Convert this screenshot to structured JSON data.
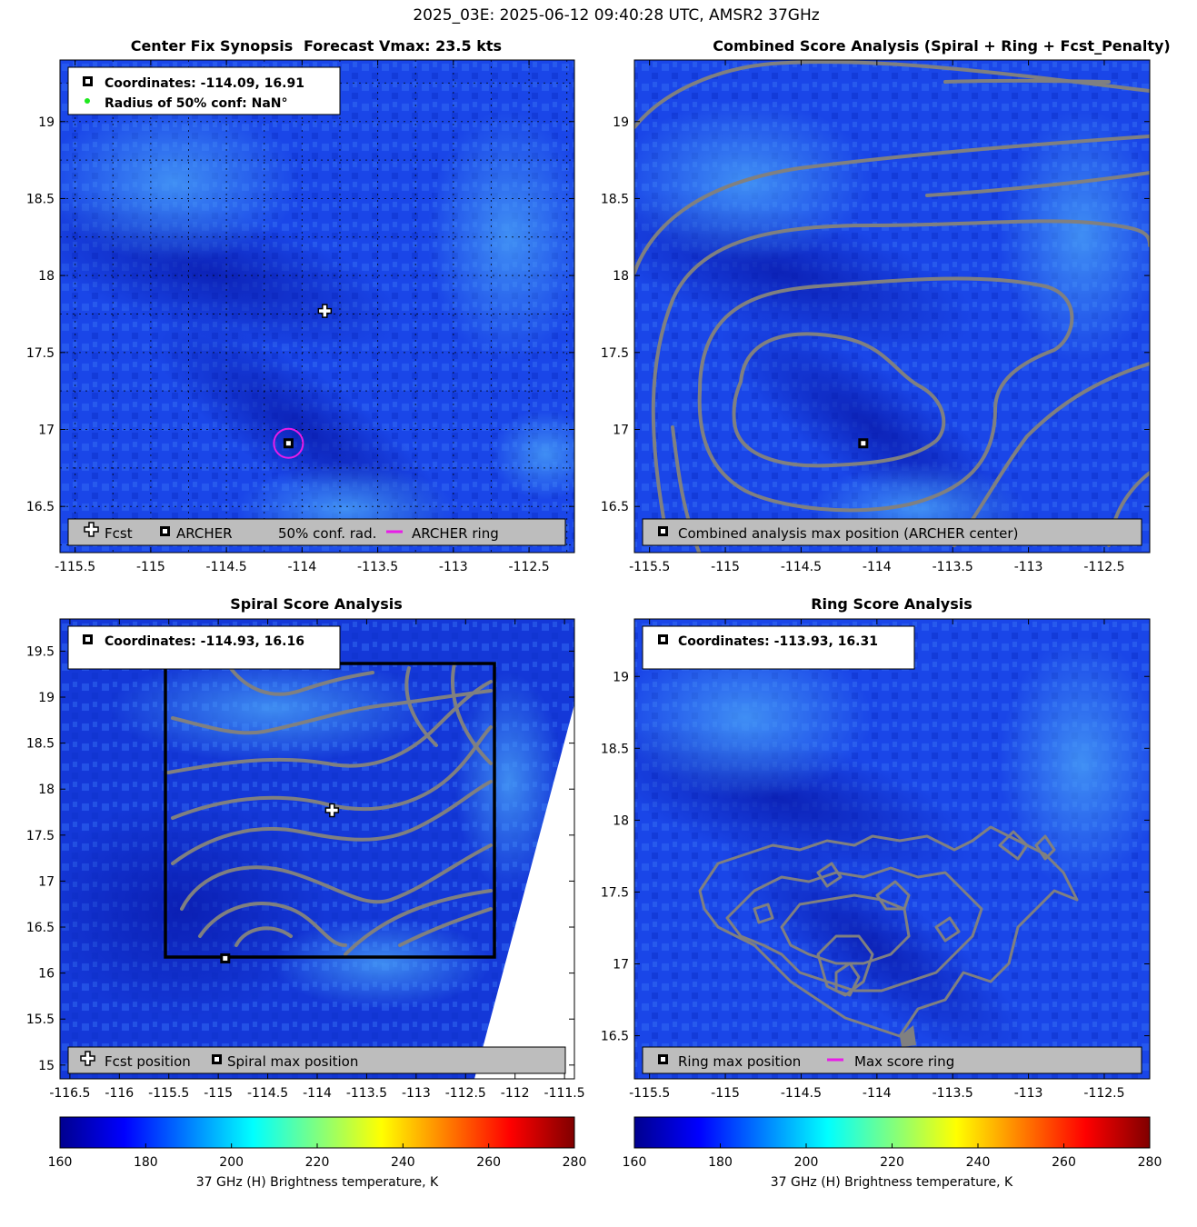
{
  "suptitle": "2025_03E: 2025-06-12 09:40:28 UTC, AMSR2 37GHz",
  "colors": {
    "plot_bg": "#1a46e8",
    "contour": "#808080",
    "ring": "#e81ce8",
    "conf": "#1ee81e",
    "legend_bar": "#bdbdbd"
  },
  "icons": {
    "fcst": "white-plus-icon",
    "archer": "black-square-marker-icon",
    "conf": "green-dot-icon",
    "ring": "magenta-line-icon"
  },
  "chart_data": [
    {
      "type": "heatmap",
      "panel": "center-fix",
      "title": "Center Fix Synopsis",
      "title_extra": "Forecast Vmax: 23.5 kts",
      "xlim": [
        -115.6,
        -112.2
      ],
      "ylim": [
        16.2,
        19.4
      ],
      "xticks": [
        -115.5,
        -115,
        -114.5,
        -114,
        -113.5,
        -113,
        -112.5
      ],
      "xtick_labels": [
        "-115.5",
        "-115",
        "-114.5",
        "-114",
        "-113.5",
        "-113",
        "-112.5"
      ],
      "yticks": [
        16.5,
        17,
        17.5,
        18,
        18.5,
        19
      ],
      "ytick_labels": [
        "16.5",
        "17",
        "17.5",
        "18",
        "18.5",
        "19"
      ],
      "grid": true,
      "info_lines": [
        "Coordinates: -114.09, 16.91",
        "Radius of 50% conf: NaN°"
      ],
      "legend": [
        "Fcst",
        "ARCHER",
        "50% conf. rad.",
        "ARCHER ring"
      ],
      "fcst_position": [
        -113.85,
        17.77
      ],
      "archer_center": [
        -114.09,
        16.91
      ]
    },
    {
      "type": "heatmap",
      "panel": "combined",
      "title": "Combined Score Analysis (Spiral + Ring + Fcst_Penalty)",
      "xlim": [
        -115.6,
        -112.2
      ],
      "ylim": [
        16.2,
        19.4
      ],
      "xticks": [
        -115.5,
        -115,
        -114.5,
        -114,
        -113.5,
        -113,
        -112.5
      ],
      "xtick_labels": [
        "-115.5",
        "-115",
        "-114.5",
        "-114",
        "-113.5",
        "-113",
        "-112.5"
      ],
      "yticks": [
        16.5,
        17,
        17.5,
        18,
        18.5,
        19
      ],
      "ytick_labels": [
        "16.5",
        "17",
        "17.5",
        "18",
        "18.5",
        "19"
      ],
      "legend": [
        "Combined analysis max position (ARCHER center)"
      ],
      "max_position": [
        -114.09,
        16.91
      ]
    },
    {
      "type": "heatmap",
      "panel": "spiral",
      "title": "Spiral Score Analysis",
      "xlim": [
        -116.6,
        -111.4
      ],
      "ylim": [
        14.85,
        19.85
      ],
      "xticks": [
        -116.5,
        -116,
        -115.5,
        -115,
        -114.5,
        -114,
        -113.5,
        -113,
        -112.5,
        -112,
        -111.5
      ],
      "xtick_labels": [
        "-116.5",
        "-116",
        "-115.5",
        "-115",
        "-114.5",
        "-114",
        "-113.5",
        "-113",
        "-112.5",
        "-112",
        "-111.5"
      ],
      "yticks": [
        15,
        15.5,
        16,
        16.5,
        17,
        17.5,
        18,
        18.5,
        19,
        19.5
      ],
      "ytick_labels": [
        "15",
        "15.5",
        "16",
        "16.5",
        "17",
        "17.5",
        "18",
        "18.5",
        "19",
        "19.5"
      ],
      "info_lines": [
        "Coordinates: -114.93, 16.16"
      ],
      "legend": [
        "Fcst position",
        "Spiral max position"
      ],
      "fcst_position": [
        -113.85,
        17.77
      ],
      "max_position": [
        -114.93,
        16.16
      ]
    },
    {
      "type": "heatmap",
      "panel": "ring",
      "title": "Ring Score Analysis",
      "xlim": [
        -115.6,
        -112.2
      ],
      "ylim": [
        16.2,
        19.4
      ],
      "xticks": [
        -115.5,
        -115,
        -114.5,
        -114,
        -113.5,
        -113,
        -112.5
      ],
      "xtick_labels": [
        "-115.5",
        "-115",
        "-114.5",
        "-114",
        "-113.5",
        "-113",
        "-112.5"
      ],
      "yticks": [
        16.5,
        17,
        17.5,
        18,
        18.5,
        19
      ],
      "ytick_labels": [
        "16.5",
        "17",
        "17.5",
        "18",
        "18.5",
        "19"
      ],
      "info_lines": [
        "Coordinates: -113.93, 16.31"
      ],
      "legend": [
        "Ring max position",
        "Max score ring"
      ],
      "max_position": [
        -113.93,
        16.31
      ]
    }
  ],
  "colorbar": {
    "label": "37 GHz (H) Brightness temperature, K",
    "ticks": [
      160,
      180,
      200,
      220,
      240,
      260,
      280
    ],
    "tick_labels": [
      "160",
      "180",
      "200",
      "220",
      "240",
      "260",
      "280"
    ],
    "range": [
      160,
      280
    ]
  }
}
